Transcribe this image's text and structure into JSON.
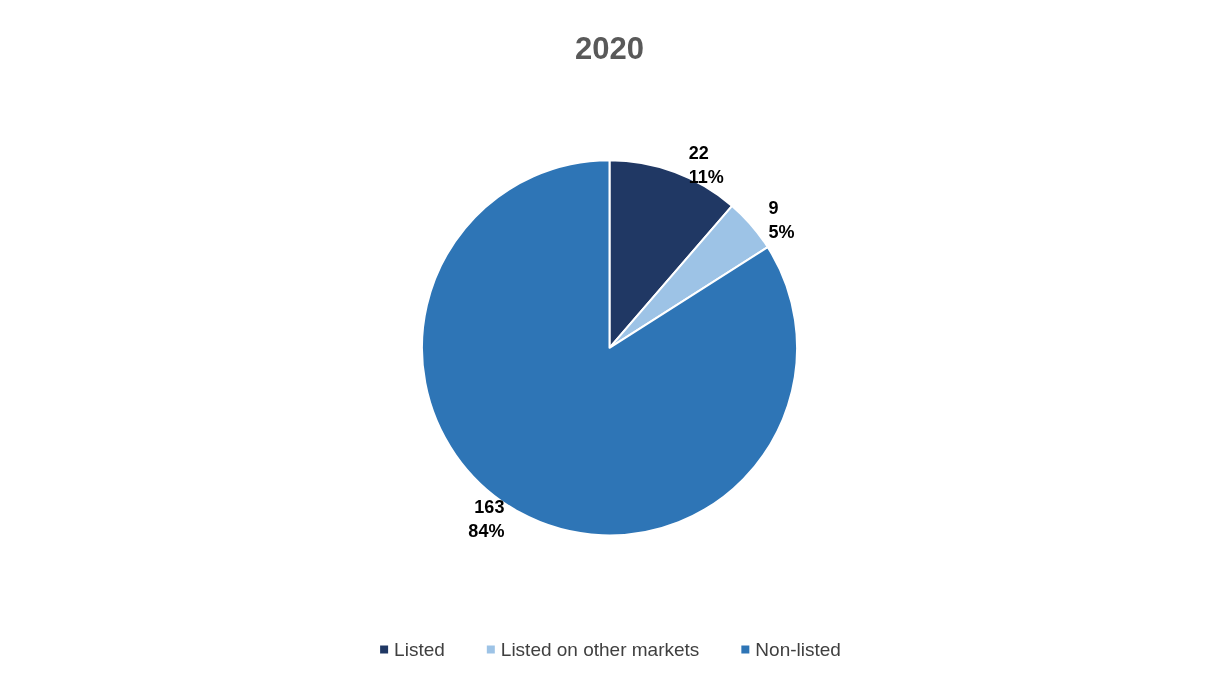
{
  "chart_data": {
    "type": "pie",
    "title": "2020",
    "categories": [
      "Listed",
      "Listed on other markets",
      "Non-listed"
    ],
    "values": [
      22,
      9,
      163
    ],
    "colors": [
      "#203864",
      "#9dc3e6",
      "#2e75b6"
    ],
    "value_labels": [
      "22\n11%",
      "9\n5%",
      "163\n84%"
    ],
    "legend": "bottom"
  }
}
